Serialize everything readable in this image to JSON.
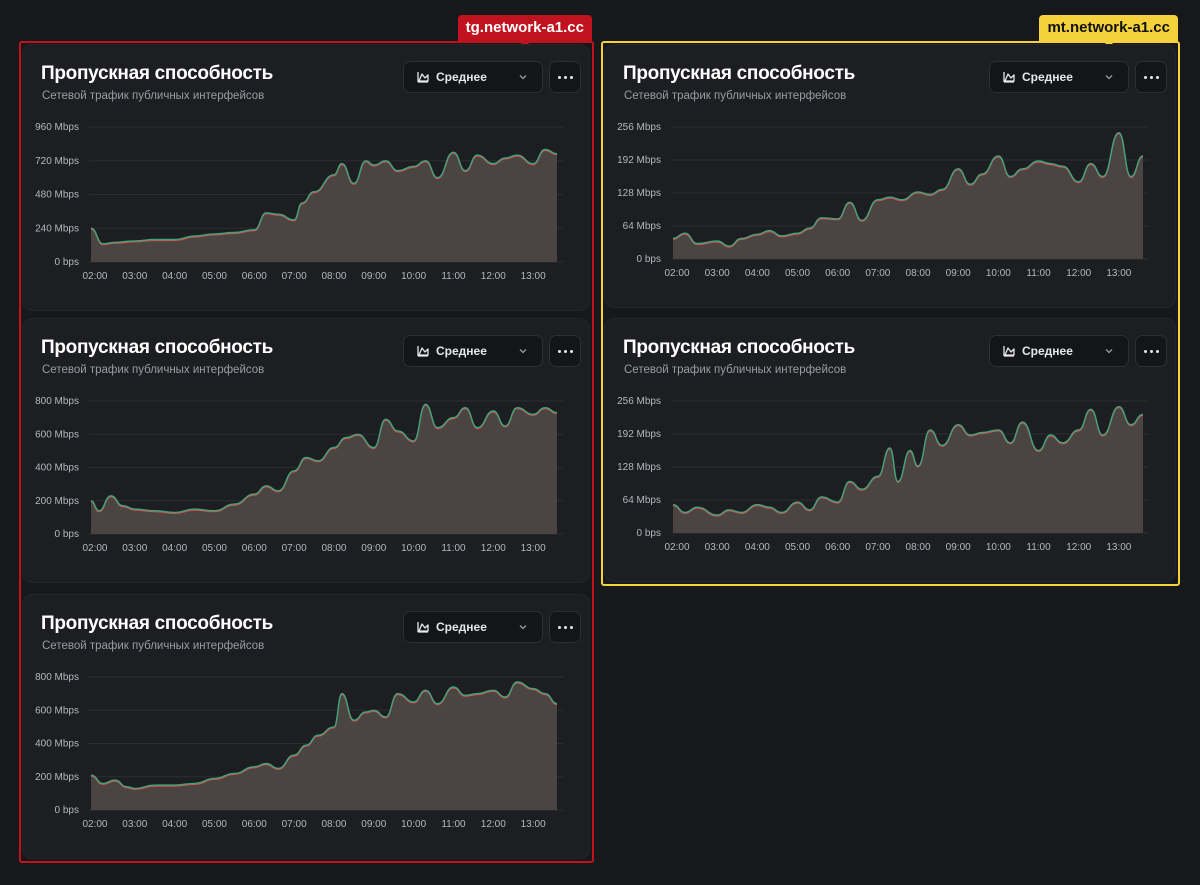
{
  "groups": [
    {
      "id": "g1",
      "label": "tg.network-a1.cc",
      "color": "#c1121f",
      "text_color": "#ffffff"
    },
    {
      "id": "g2",
      "label": "mt.network-a1.cc",
      "color": "#f5d23c",
      "text_color": "#111111"
    }
  ],
  "panels": [
    {
      "title": "Пропускная способность",
      "subtitle": "Сетевой трафик публичных интерфейсов",
      "aggregation": "Среднее"
    },
    {
      "title": "Пропускная способность",
      "subtitle": "Сетевой трафик публичных интерфейсов",
      "aggregation": "Среднее"
    },
    {
      "title": "Пропускная способность",
      "subtitle": "Сетевой трафик публичных интерфейсов",
      "aggregation": "Среднее"
    },
    {
      "title": "Пропускная способность",
      "subtitle": "Сетевой трафик публичных интерфейсов",
      "aggregation": "Среднее"
    },
    {
      "title": "Пропускная способность",
      "subtitle": "Сетевой трафик публичных интерфейсов",
      "aggregation": "Среднее"
    }
  ],
  "colors": {
    "area_fill": "#4a4542",
    "line_green": "#3ea47a",
    "line_red": "#d05050",
    "grid": "#2b2d31"
  },
  "chart_data": [
    {
      "type": "area",
      "panel": "tg-1",
      "unit": "Mbps",
      "yticks": [
        "0 bps",
        "240 Mbps",
        "480 Mbps",
        "720 Mbps",
        "960 Mbps"
      ],
      "ylim": [
        0,
        960
      ],
      "xticks": [
        "02:00",
        "03:00",
        "04:00",
        "05:00",
        "06:00",
        "07:00",
        "08:00",
        "09:00",
        "10:00",
        "11:00",
        "12:00",
        "13:00"
      ],
      "x": [
        1.9,
        2.2,
        2.5,
        3.0,
        3.5,
        4.0,
        4.5,
        5.0,
        5.5,
        6.0,
        6.3,
        6.6,
        7.0,
        7.2,
        7.5,
        8.0,
        8.2,
        8.5,
        8.8,
        9.0,
        9.3,
        9.6,
        10.0,
        10.3,
        10.6,
        11.0,
        11.3,
        11.6,
        12.0,
        12.3,
        12.6,
        13.0,
        13.3,
        13.6
      ],
      "series": [
        {
          "name": "avg",
          "values": [
            240,
            130,
            140,
            150,
            160,
            160,
            185,
            200,
            210,
            230,
            350,
            340,
            300,
            420,
            500,
            620,
            700,
            560,
            720,
            690,
            720,
            650,
            680,
            720,
            600,
            780,
            650,
            760,
            700,
            740,
            760,
            700,
            800,
            770
          ]
        }
      ]
    },
    {
      "type": "area",
      "panel": "tg-2",
      "unit": "Mbps",
      "yticks": [
        "0 bps",
        "200 Mbps",
        "400 Mbps",
        "600 Mbps",
        "800 Mbps"
      ],
      "ylim": [
        0,
        800
      ],
      "xticks": [
        "02:00",
        "03:00",
        "04:00",
        "05:00",
        "06:00",
        "07:00",
        "08:00",
        "09:00",
        "10:00",
        "11:00",
        "12:00",
        "13:00"
      ],
      "x": [
        1.9,
        2.1,
        2.4,
        2.7,
        3.0,
        3.5,
        4.0,
        4.5,
        5.0,
        5.5,
        6.0,
        6.3,
        6.6,
        7.0,
        7.3,
        7.6,
        8.0,
        8.3,
        8.6,
        9.0,
        9.3,
        9.6,
        10.0,
        10.3,
        10.6,
        11.0,
        11.3,
        11.6,
        12.0,
        12.3,
        12.6,
        13.0,
        13.3,
        13.6
      ],
      "series": [
        {
          "name": "avg",
          "values": [
            200,
            140,
            230,
            170,
            150,
            140,
            130,
            150,
            140,
            180,
            240,
            290,
            260,
            380,
            460,
            440,
            520,
            580,
            600,
            520,
            690,
            620,
            560,
            780,
            640,
            700,
            760,
            640,
            740,
            650,
            760,
            720,
            760,
            730
          ]
        }
      ]
    },
    {
      "type": "area",
      "panel": "tg-3",
      "unit": "Mbps",
      "yticks": [
        "0 bps",
        "200 Mbps",
        "400 Mbps",
        "600 Mbps",
        "800 Mbps"
      ],
      "ylim": [
        0,
        800
      ],
      "xticks": [
        "02:00",
        "03:00",
        "04:00",
        "05:00",
        "06:00",
        "07:00",
        "08:00",
        "09:00",
        "10:00",
        "11:00",
        "12:00",
        "13:00"
      ],
      "x": [
        1.9,
        2.2,
        2.5,
        2.8,
        3.0,
        3.5,
        4.0,
        4.5,
        5.0,
        5.5,
        6.0,
        6.3,
        6.6,
        7.0,
        7.3,
        7.6,
        8.0,
        8.2,
        8.5,
        8.8,
        9.0,
        9.3,
        9.6,
        10.0,
        10.3,
        10.6,
        11.0,
        11.3,
        11.6,
        12.0,
        12.3,
        12.6,
        13.0,
        13.3,
        13.6
      ],
      "series": [
        {
          "name": "avg",
          "values": [
            210,
            160,
            180,
            140,
            130,
            150,
            150,
            160,
            190,
            220,
            260,
            280,
            250,
            330,
            390,
            450,
            500,
            700,
            540,
            590,
            600,
            560,
            700,
            650,
            720,
            640,
            740,
            690,
            700,
            720,
            680,
            770,
            730,
            700,
            640
          ]
        }
      ]
    },
    {
      "type": "area",
      "panel": "mt-1",
      "unit": "Mbps",
      "yticks": [
        "0 bps",
        "64 Mbps",
        "128 Mbps",
        "192 Mbps",
        "256 Mbps"
      ],
      "ylim": [
        0,
        256
      ],
      "xticks": [
        "02:00",
        "03:00",
        "04:00",
        "05:00",
        "06:00",
        "07:00",
        "08:00",
        "09:00",
        "10:00",
        "11:00",
        "12:00",
        "13:00"
      ],
      "x": [
        1.9,
        2.2,
        2.5,
        3.0,
        3.3,
        3.6,
        4.0,
        4.3,
        4.6,
        5.0,
        5.3,
        5.6,
        6.0,
        6.3,
        6.6,
        7.0,
        7.3,
        7.6,
        8.0,
        8.3,
        8.6,
        9.0,
        9.3,
        9.6,
        10.0,
        10.3,
        10.6,
        11.0,
        11.3,
        11.6,
        12.0,
        12.3,
        12.6,
        13.0,
        13.3,
        13.6
      ],
      "series": [
        {
          "name": "avg",
          "values": [
            40,
            50,
            30,
            35,
            25,
            40,
            48,
            55,
            45,
            50,
            60,
            80,
            78,
            110,
            75,
            115,
            120,
            115,
            130,
            125,
            135,
            175,
            145,
            165,
            200,
            160,
            175,
            190,
            185,
            180,
            150,
            185,
            160,
            245,
            160,
            200
          ]
        }
      ]
    },
    {
      "type": "area",
      "panel": "mt-2",
      "unit": "Mbps",
      "yticks": [
        "0 bps",
        "64 Mbps",
        "128 Mbps",
        "192 Mbps",
        "256 Mbps"
      ],
      "ylim": [
        0,
        256
      ],
      "xticks": [
        "02:00",
        "03:00",
        "04:00",
        "05:00",
        "06:00",
        "07:00",
        "08:00",
        "09:00",
        "10:00",
        "11:00",
        "12:00",
        "13:00"
      ],
      "x": [
        1.9,
        2.2,
        2.5,
        3.0,
        3.3,
        3.6,
        4.0,
        4.3,
        4.6,
        5.0,
        5.3,
        5.6,
        6.0,
        6.3,
        6.6,
        7.0,
        7.3,
        7.5,
        7.8,
        8.0,
        8.3,
        8.6,
        9.0,
        9.3,
        9.6,
        10.0,
        10.3,
        10.6,
        11.0,
        11.3,
        11.6,
        12.0,
        12.3,
        12.6,
        13.0,
        13.3,
        13.6
      ],
      "series": [
        {
          "name": "avg",
          "values": [
            55,
            40,
            50,
            35,
            45,
            40,
            55,
            50,
            40,
            60,
            45,
            70,
            60,
            100,
            85,
            110,
            165,
            100,
            160,
            130,
            200,
            170,
            210,
            190,
            195,
            200,
            175,
            215,
            160,
            190,
            175,
            200,
            240,
            190,
            245,
            210,
            230
          ]
        }
      ]
    }
  ]
}
